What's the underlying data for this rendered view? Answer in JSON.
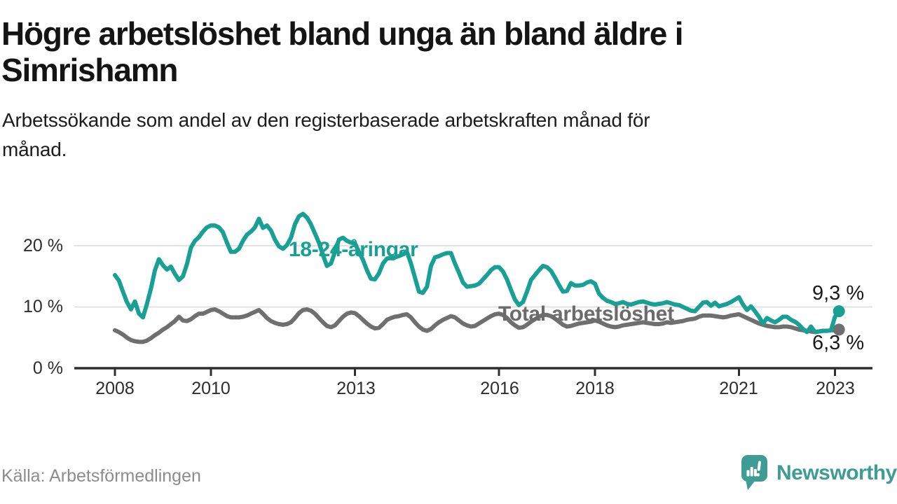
{
  "header": {
    "title_line1": "Högre arbetslöshet bland unga än bland äldre i",
    "title_line2": "Simrishamn",
    "subtitle_line1": "Arbetssökande som andel av den registerbaserade arbetskraften månad för",
    "subtitle_line2": "månad."
  },
  "footer": {
    "source": "Källa: Arbetsförmedlingen",
    "brand": "Newsworthy"
  },
  "colors": {
    "young_line": "#18A095",
    "total_line": "#6F6F6F",
    "grid": "#D9D9D9",
    "axis": "#2F2F2F",
    "brand_teal": "#3E9C94"
  },
  "chart_data": {
    "type": "line",
    "title": "Högre arbetslöshet bland unga än bland äldre i Simrishamn",
    "subtitle": "Arbetssökande som andel av den registerbaserade arbetskraften månad för månad.",
    "xlabel": "",
    "ylabel": "",
    "unit": "%",
    "grid": "horizontal",
    "legend_position": "inline-labels",
    "ylim": [
      0,
      26
    ],
    "x_start": {
      "year": 2008,
      "month": 1
    },
    "x_end": {
      "year": 2023,
      "month": 2
    },
    "y_ticks": [
      {
        "value": 0,
        "label": "0 %"
      },
      {
        "value": 10,
        "label": "10 %"
      },
      {
        "value": 20,
        "label": "20 %"
      }
    ],
    "x_ticks": [
      {
        "year": 2008,
        "label": "2008"
      },
      {
        "year": 2010,
        "label": "2010"
      },
      {
        "year": 2013,
        "label": "2013"
      },
      {
        "year": 2016,
        "label": "2016"
      },
      {
        "year": 2018,
        "label": "2018"
      },
      {
        "year": 2021,
        "label": "2021"
      },
      {
        "year": 2023,
        "label": "2023"
      }
    ],
    "series": [
      {
        "name": "18-24-åringar",
        "color": "#18A095",
        "end_value": 9.3,
        "end_label": "9,3 %",
        "values": [
          15.2,
          14.3,
          12.5,
          10.8,
          9.6,
          10.9,
          8.9,
          8.3,
          10.5,
          13.0,
          16.0,
          17.8,
          16.8,
          16.1,
          16.6,
          15.4,
          14.4,
          15.0,
          17.0,
          19.7,
          20.8,
          21.4,
          22.3,
          23.0,
          23.3,
          23.3,
          23.0,
          22.2,
          20.5,
          19.0,
          19.0,
          19.5,
          20.8,
          21.8,
          22.3,
          23.0,
          24.4,
          22.9,
          23.3,
          22.5,
          21.0,
          19.9,
          19.5,
          20.1,
          21.3,
          23.5,
          24.8,
          25.2,
          24.6,
          23.5,
          22.0,
          20.5,
          18.5,
          16.7,
          17.1,
          19.0,
          21.0,
          21.3,
          20.8,
          20.5,
          20.4,
          19.0,
          17.7,
          16.0,
          14.6,
          14.5,
          15.5,
          17.1,
          17.9,
          18.0,
          18.1,
          18.3,
          18.6,
          19.0,
          17.1,
          14.8,
          12.5,
          12.3,
          13.3,
          16.7,
          18.1,
          18.3,
          18.6,
          18.8,
          18.8,
          17.1,
          15.6,
          14.0,
          13.3,
          13.4,
          13.5,
          13.8,
          14.5,
          15.2,
          16.0,
          16.5,
          16.5,
          15.8,
          14.5,
          12.8,
          11.2,
          10.3,
          10.8,
          12.5,
          14.4,
          15.2,
          16.0,
          16.7,
          16.5,
          15.9,
          14.8,
          13.6,
          12.5,
          12.6,
          13.9,
          13.5,
          13.5,
          13.6,
          14.0,
          14.2,
          13.8,
          12.2,
          11.5,
          11.0,
          10.8,
          10.5,
          10.6,
          10.8,
          10.5,
          10.4,
          10.6,
          10.8,
          10.9,
          10.7,
          10.5,
          10.4,
          10.5,
          10.6,
          10.8,
          10.6,
          10.4,
          10.3,
          10.0,
          9.7,
          9.4,
          9.3,
          10.0,
          10.7,
          10.8,
          10.2,
          10.7,
          10.1,
          10.3,
          10.5,
          10.8,
          11.2,
          11.6,
          10.4,
          9.5,
          10.1,
          9.3,
          8.4,
          7.3,
          8.2,
          7.8,
          7.5,
          7.9,
          8.4,
          8.4,
          7.9,
          7.6,
          7.1,
          6.4,
          5.9,
          6.8,
          5.9,
          6.0,
          6.1,
          6.1,
          6.2,
          8.4,
          9.3
        ]
      },
      {
        "name": "Total arbetslöshet",
        "color": "#6F6F6F",
        "end_value": 6.3,
        "end_label": "6,3 %",
        "values": [
          6.2,
          5.9,
          5.5,
          5.0,
          4.6,
          4.4,
          4.3,
          4.3,
          4.5,
          4.9,
          5.4,
          5.8,
          6.3,
          6.7,
          7.2,
          7.7,
          8.4,
          7.8,
          7.7,
          8.0,
          8.5,
          8.9,
          8.9,
          9.2,
          9.5,
          9.6,
          9.3,
          8.9,
          8.5,
          8.3,
          8.3,
          8.3,
          8.4,
          8.6,
          8.9,
          9.2,
          9.5,
          8.9,
          8.2,
          7.7,
          7.4,
          7.2,
          7.1,
          7.2,
          7.5,
          8.2,
          9.0,
          9.5,
          9.6,
          9.4,
          8.9,
          8.2,
          7.5,
          6.9,
          6.7,
          7.0,
          7.7,
          8.4,
          8.9,
          9.1,
          9.0,
          8.5,
          7.9,
          7.3,
          6.8,
          6.5,
          6.6,
          7.2,
          7.9,
          8.2,
          8.4,
          8.5,
          8.7,
          8.8,
          8.3,
          7.5,
          6.8,
          6.3,
          6.1,
          6.4,
          7.0,
          7.5,
          7.9,
          8.2,
          8.5,
          8.3,
          7.8,
          7.3,
          7.0,
          6.8,
          6.9,
          7.3,
          7.7,
          8.1,
          8.5,
          8.8,
          8.9,
          8.7,
          8.2,
          7.5,
          7.0,
          6.6,
          6.7,
          7.1,
          7.6,
          8.0,
          8.4,
          8.7,
          8.7,
          8.5,
          8.1,
          7.6,
          7.1,
          6.8,
          6.9,
          7.1,
          7.3,
          7.4,
          7.5,
          7.6,
          7.8,
          7.6,
          7.3,
          7.0,
          6.8,
          6.7,
          6.8,
          7.0,
          7.1,
          7.2,
          7.3,
          7.4,
          7.5,
          7.4,
          7.3,
          7.2,
          7.2,
          7.3,
          7.5,
          7.4,
          7.5,
          7.6,
          7.7,
          7.9,
          8.0,
          8.1,
          8.4,
          8.6,
          8.6,
          8.6,
          8.5,
          8.4,
          8.3,
          8.4,
          8.6,
          8.7,
          8.8,
          8.5,
          8.2,
          7.9,
          7.6,
          7.3,
          7.1,
          6.9,
          6.8,
          6.7,
          6.7,
          6.8,
          6.8,
          6.7,
          6.5,
          6.3,
          6.2,
          6.1,
          6.0,
          5.9,
          6.0,
          6.1,
          6.1,
          6.2,
          6.2,
          6.3
        ]
      }
    ]
  }
}
